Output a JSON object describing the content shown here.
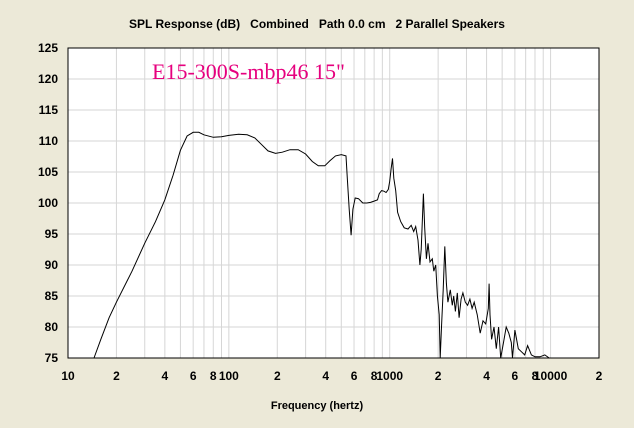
{
  "chart_data": {
    "type": "line",
    "title": "SPL Response (dB)   Combined   Path 0.0 cm   2 Parallel Speakers",
    "annotation": "E15-300S-mbp46 15\"",
    "xlabel": "Frequency (hertz)",
    "ylabel": "",
    "xscale": "log",
    "xlim": [
      10,
      20000
    ],
    "ylim": [
      75,
      125
    ],
    "yticks": [
      "75",
      "80",
      "85",
      "90",
      "95",
      "100",
      "105",
      "110",
      "115",
      "120",
      "125"
    ],
    "xticks": [
      {
        "v": 10,
        "label": "10"
      },
      {
        "v": 20,
        "label": "2"
      },
      {
        "v": 40,
        "label": "4"
      },
      {
        "v": 60,
        "label": "6"
      },
      {
        "v": 80,
        "label": "8"
      },
      {
        "v": 100,
        "label": "100"
      },
      {
        "v": 200,
        "label": "2"
      },
      {
        "v": 400,
        "label": "4"
      },
      {
        "v": 600,
        "label": "6"
      },
      {
        "v": 800,
        "label": "8"
      },
      {
        "v": 1000,
        "label": "1000"
      },
      {
        "v": 2000,
        "label": "2"
      },
      {
        "v": 4000,
        "label": "4"
      },
      {
        "v": 6000,
        "label": "6"
      },
      {
        "v": 8000,
        "label": "8"
      },
      {
        "v": 10000,
        "label": "10000"
      },
      {
        "v": 20000,
        "label": "2"
      }
    ],
    "grid": true,
    "colors": {
      "background": "#ece9d8",
      "plot": "#ffffff",
      "grid": "#d6d6d6",
      "line": "#000000",
      "annotation": "#e6007e"
    },
    "series": [
      {
        "points": [
          [
            14.5,
            75
          ],
          [
            16,
            78
          ],
          [
            18,
            81.5
          ],
          [
            20,
            84
          ],
          [
            25,
            89
          ],
          [
            30,
            93.5
          ],
          [
            35,
            97
          ],
          [
            40,
            100.5
          ],
          [
            45,
            104.5
          ],
          [
            50,
            108.5
          ],
          [
            55,
            110.8
          ],
          [
            60,
            111.4
          ],
          [
            65,
            111.4
          ],
          [
            70,
            111
          ],
          [
            80,
            110.6
          ],
          [
            90,
            110.7
          ],
          [
            100,
            110.9
          ],
          [
            115,
            111.1
          ],
          [
            130,
            111
          ],
          [
            145,
            110.5
          ],
          [
            160,
            109.4
          ],
          [
            175,
            108.4
          ],
          [
            195,
            108
          ],
          [
            215,
            108.2
          ],
          [
            240,
            108.6
          ],
          [
            270,
            108.6
          ],
          [
            300,
            107.9
          ],
          [
            330,
            106.7
          ],
          [
            360,
            106
          ],
          [
            395,
            106
          ],
          [
            425,
            106.8
          ],
          [
            460,
            107.6
          ],
          [
            500,
            107.8
          ],
          [
            535,
            107.6
          ],
          [
            545,
            104
          ],
          [
            560,
            99
          ],
          [
            575,
            94.8
          ],
          [
            590,
            99
          ],
          [
            610,
            100.8
          ],
          [
            640,
            100.7
          ],
          [
            680,
            100
          ],
          [
            720,
            100
          ],
          [
            760,
            100.1
          ],
          [
            800,
            100.3
          ],
          [
            840,
            100.5
          ],
          [
            860,
            101.5
          ],
          [
            890,
            102
          ],
          [
            920,
            101.9
          ],
          [
            950,
            101.7
          ],
          [
            980,
            102.2
          ],
          [
            1000,
            103.5
          ],
          [
            1020,
            105.5
          ],
          [
            1040,
            107.2
          ],
          [
            1060,
            104
          ],
          [
            1090,
            102
          ],
          [
            1120,
            98.5
          ],
          [
            1170,
            97
          ],
          [
            1230,
            96
          ],
          [
            1300,
            95.8
          ],
          [
            1360,
            96.4
          ],
          [
            1410,
            95.4
          ],
          [
            1450,
            96.2
          ],
          [
            1500,
            94
          ],
          [
            1540,
            90
          ],
          [
            1570,
            92.5
          ],
          [
            1620,
            101.5
          ],
          [
            1650,
            96
          ],
          [
            1690,
            91
          ],
          [
            1730,
            93.5
          ],
          [
            1780,
            90.5
          ],
          [
            1840,
            91
          ],
          [
            1880,
            89
          ],
          [
            1930,
            90
          ],
          [
            1980,
            85
          ],
          [
            2030,
            82
          ],
          [
            2060,
            75
          ],
          [
            2100,
            80
          ],
          [
            2150,
            86
          ],
          [
            2200,
            93
          ],
          [
            2250,
            87
          ],
          [
            2300,
            84
          ],
          [
            2380,
            86
          ],
          [
            2450,
            83.5
          ],
          [
            2500,
            85
          ],
          [
            2560,
            82.5
          ],
          [
            2630,
            85.5
          ],
          [
            2700,
            81.5
          ],
          [
            2780,
            84.5
          ],
          [
            2850,
            85.5
          ],
          [
            2950,
            84
          ],
          [
            3050,
            83.5
          ],
          [
            3150,
            84.5
          ],
          [
            3250,
            83
          ],
          [
            3350,
            84
          ],
          [
            3500,
            82
          ],
          [
            3650,
            79
          ],
          [
            3800,
            81
          ],
          [
            3950,
            80.5
          ],
          [
            4100,
            83
          ],
          [
            4150,
            87
          ],
          [
            4200,
            82
          ],
          [
            4300,
            78
          ],
          [
            4450,
            80
          ],
          [
            4600,
            76.5
          ],
          [
            4750,
            80
          ],
          [
            4900,
            75
          ],
          [
            5100,
            77.5
          ],
          [
            5300,
            80
          ],
          [
            5500,
            79
          ],
          [
            5700,
            77.5
          ],
          [
            5800,
            75
          ],
          [
            6000,
            79.5
          ],
          [
            6300,
            76.5
          ],
          [
            6600,
            76
          ],
          [
            6900,
            75.5
          ],
          [
            7200,
            77
          ],
          [
            7600,
            75.5
          ],
          [
            8000,
            75.2
          ],
          [
            8600,
            75.2
          ],
          [
            9200,
            75.5
          ],
          [
            9800,
            75
          ]
        ]
      }
    ]
  }
}
